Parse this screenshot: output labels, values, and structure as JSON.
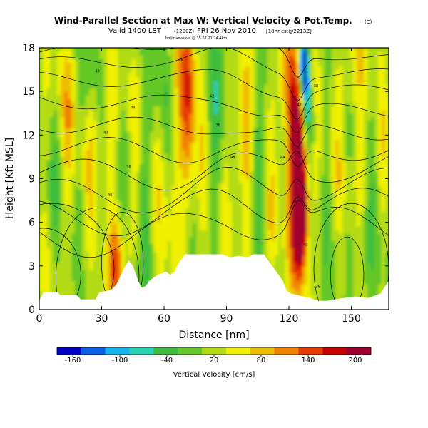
{
  "header": {
    "title": "Wind-Parallel Section at Max W: Vertical Velocity & Pot.Temp.",
    "copyright": "(C)",
    "valid_line": "Valid 1400 LST",
    "valid_utc": "(1200Z)",
    "valid_date": "FRI 26 Nov 2010",
    "run_info": "[18hr cst@2213Z]",
    "file_info": "bpl/max-wave @ 35.67 21.24 4km"
  },
  "chart_data": {
    "type": "heatmap",
    "title": "Wind-Parallel Section at Max W: Vertical Velocity & Pot.Temp.",
    "xlabel": "Distance [nm]",
    "ylabel": "Height [Kft MSL]",
    "xlim": [
      0,
      168
    ],
    "ylim": [
      0,
      18
    ],
    "x_ticks": [
      "0",
      "30",
      "60",
      "90",
      "120",
      "150"
    ],
    "y_ticks": [
      "0",
      "3",
      "6",
      "9",
      "12",
      "15",
      "18"
    ],
    "x_tick_values": [
      0,
      30,
      60,
      90,
      120,
      150
    ],
    "y_tick_values": [
      0,
      3,
      6,
      9,
      12,
      15,
      18
    ],
    "colorbar": {
      "label": "Vertical Velocity [cm/s]",
      "ticks": [
        "-160",
        "-100",
        "-40",
        "20",
        "80",
        "140",
        "200"
      ],
      "tick_values": [
        -160,
        -100,
        -40,
        20,
        80,
        140,
        200
      ],
      "range": [
        -180,
        220
      ]
    },
    "features": {
      "max_updraft_cm_s": 200,
      "max_updraft_x_nm": 125,
      "max_updraft_height_kft": 8,
      "max_downdraft_cm_s": -140,
      "max_downdraft_x_nm": 127,
      "max_downdraft_height_kft": 17,
      "terrain_peak_kft": 3.8,
      "terrain_peak_x_nm": 90
    },
    "isentrope_labels": [
      "48",
      "46",
      "44",
      "42",
      "40",
      "38",
      "36"
    ]
  },
  "colors": {
    "colormap": [
      "#0000c8",
      "#0a5fe6",
      "#14b4f0",
      "#28d2b4",
      "#3cbe3c",
      "#64c828",
      "#b4dc14",
      "#f0f000",
      "#f0be00",
      "#f08200",
      "#e63c00",
      "#c80000",
      "#a0002d"
    ],
    "background_field": "#55c321",
    "terrain": "#ffffff",
    "contour": "#000000"
  }
}
